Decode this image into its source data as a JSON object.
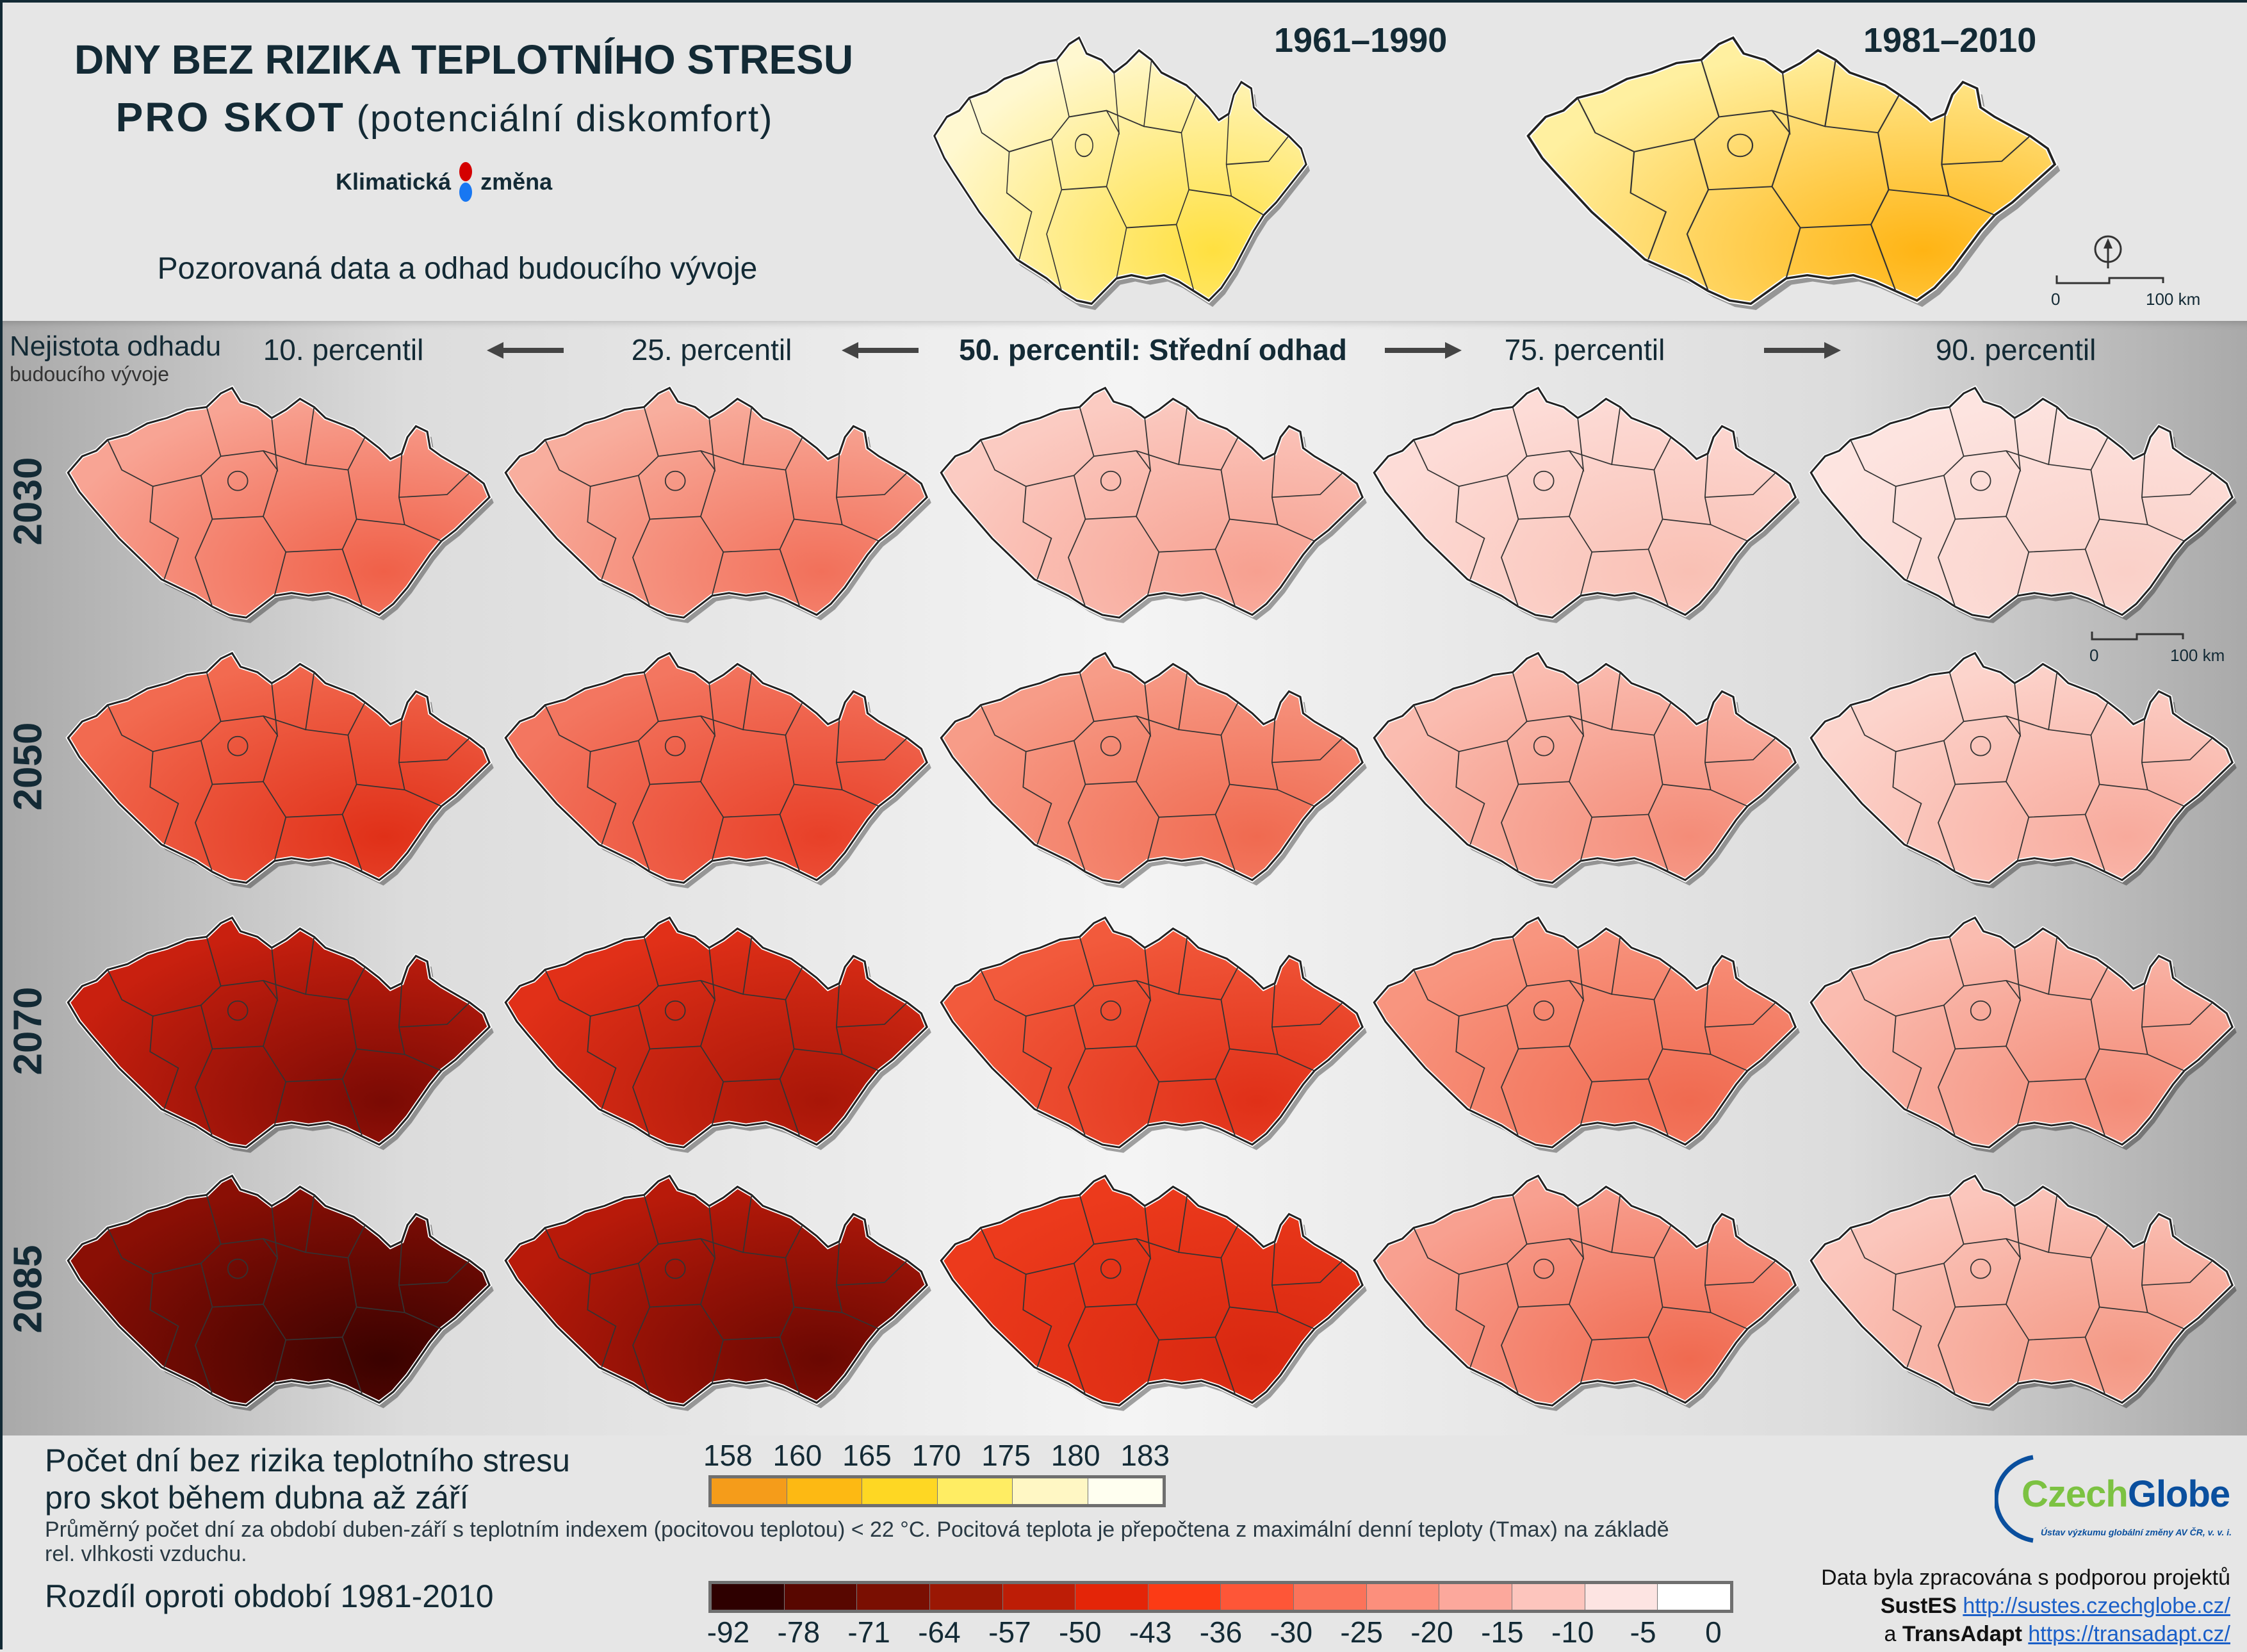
{
  "header": {
    "title_line1": "DNY BEZ RIZIKA TEPLOTNÍHO STRESU",
    "title_line2_bold": "PRO SKOT",
    "title_line2_rest": "(potenciální diskomfort)",
    "logo_left": "Klimatická",
    "logo_right": "změna",
    "subtitle": "Pozorovaná data a odhad budoucího vývoje"
  },
  "observed": [
    {
      "period": "1961–1990",
      "fill": "#fff8d0",
      "accent": "#ffe040"
    },
    {
      "period": "1981–2010",
      "fill": "#fff0a0",
      "accent": "#ffb414"
    }
  ],
  "scalebar": {
    "start": "0",
    "end": "100 km"
  },
  "uncertainty": {
    "title": "Nejistota odhadu",
    "subtitle": "budoucího vývoje"
  },
  "columns": [
    "10. percentil",
    "25. percentil",
    "50. percentil: Střední odhad",
    "75. percentil",
    "90. percentil"
  ],
  "rows": [
    {
      "year": "2030",
      "fills": [
        "#f8a494",
        "#f8ae9e",
        "#fbcbc2",
        "#fddcd7",
        "#fde4e0"
      ],
      "accents": [
        "#f06048",
        "#f2705a",
        "#f7a090",
        "#f9c0b4",
        "#fad0c8"
      ]
    },
    {
      "year": "2050",
      "fills": [
        "#f26a50",
        "#f37660",
        "#f79c88",
        "#fabcb0",
        "#fcd4cc"
      ],
      "accents": [
        "#e03018",
        "#e84028",
        "#f06a50",
        "#f48c78",
        "#f8aa9c"
      ]
    },
    {
      "year": "2070",
      "fills": [
        "#c9200f",
        "#e13018",
        "#f25a3c",
        "#f8957f",
        "#fabcb0"
      ],
      "accents": [
        "#7a0a04",
        "#a81608",
        "#e03018",
        "#f06a50",
        "#f48c78"
      ]
    },
    {
      "year": "2085",
      "fills": [
        "#8a0f05",
        "#b81a0a",
        "#ec3a1c",
        "#f8a090",
        "#fbc6bc"
      ],
      "accents": [
        "#3a0200",
        "#6a0802",
        "#d82810",
        "#f06a50",
        "#f49884"
      ]
    }
  ],
  "legend": {
    "days_title_1": "Počet dní bez rizika teplotního stresu",
    "days_title_2": "pro skot během dubna až září",
    "days_ticks": [
      "158",
      "160",
      "165",
      "170",
      "175",
      "180",
      "183"
    ],
    "days_colors": [
      "#f59c1a",
      "#fdb913",
      "#fed723",
      "#ffed63",
      "#fff7c4",
      "#fffff0"
    ],
    "note": "Průměrný počet dní za období duben-září s teplotním indexem (pocitovou teplotou) < 22 °C. Pocitová teplota je přepočtena z maximální denní teploty (Tmax) na základě rel. vlhkosti vzduchu.",
    "diff_title": "Rozdíl oproti období 1981-2010",
    "diff_ticks": [
      "-92",
      "-78",
      "-71",
      "-64",
      "-57",
      "-50",
      "-43",
      "-36",
      "-30",
      "-25",
      "-20",
      "-15",
      "-10",
      "-5",
      "0"
    ],
    "diff_colors": [
      "#2e0000",
      "#580700",
      "#7a0f02",
      "#9a1704",
      "#bd1d06",
      "#e42508",
      "#fc3b15",
      "#fe5637",
      "#fb735a",
      "#fc8f7c",
      "#fca89c",
      "#fdc5bd",
      "#fde4e2",
      "#ffffff"
    ]
  },
  "branding": {
    "logo_green": "Czech",
    "logo_blue": "Globe",
    "logo_sub": "Ústav výzkumu globální změny AV ČR, v. v. i.",
    "credit_line": "Data byla zpracována s podporou projektů",
    "project1": "SustES",
    "link1": "http://sustes.czechglobe.cz/",
    "conj": "a",
    "project2": "TransAdapt",
    "link2": "https://transadapt.cz/"
  }
}
